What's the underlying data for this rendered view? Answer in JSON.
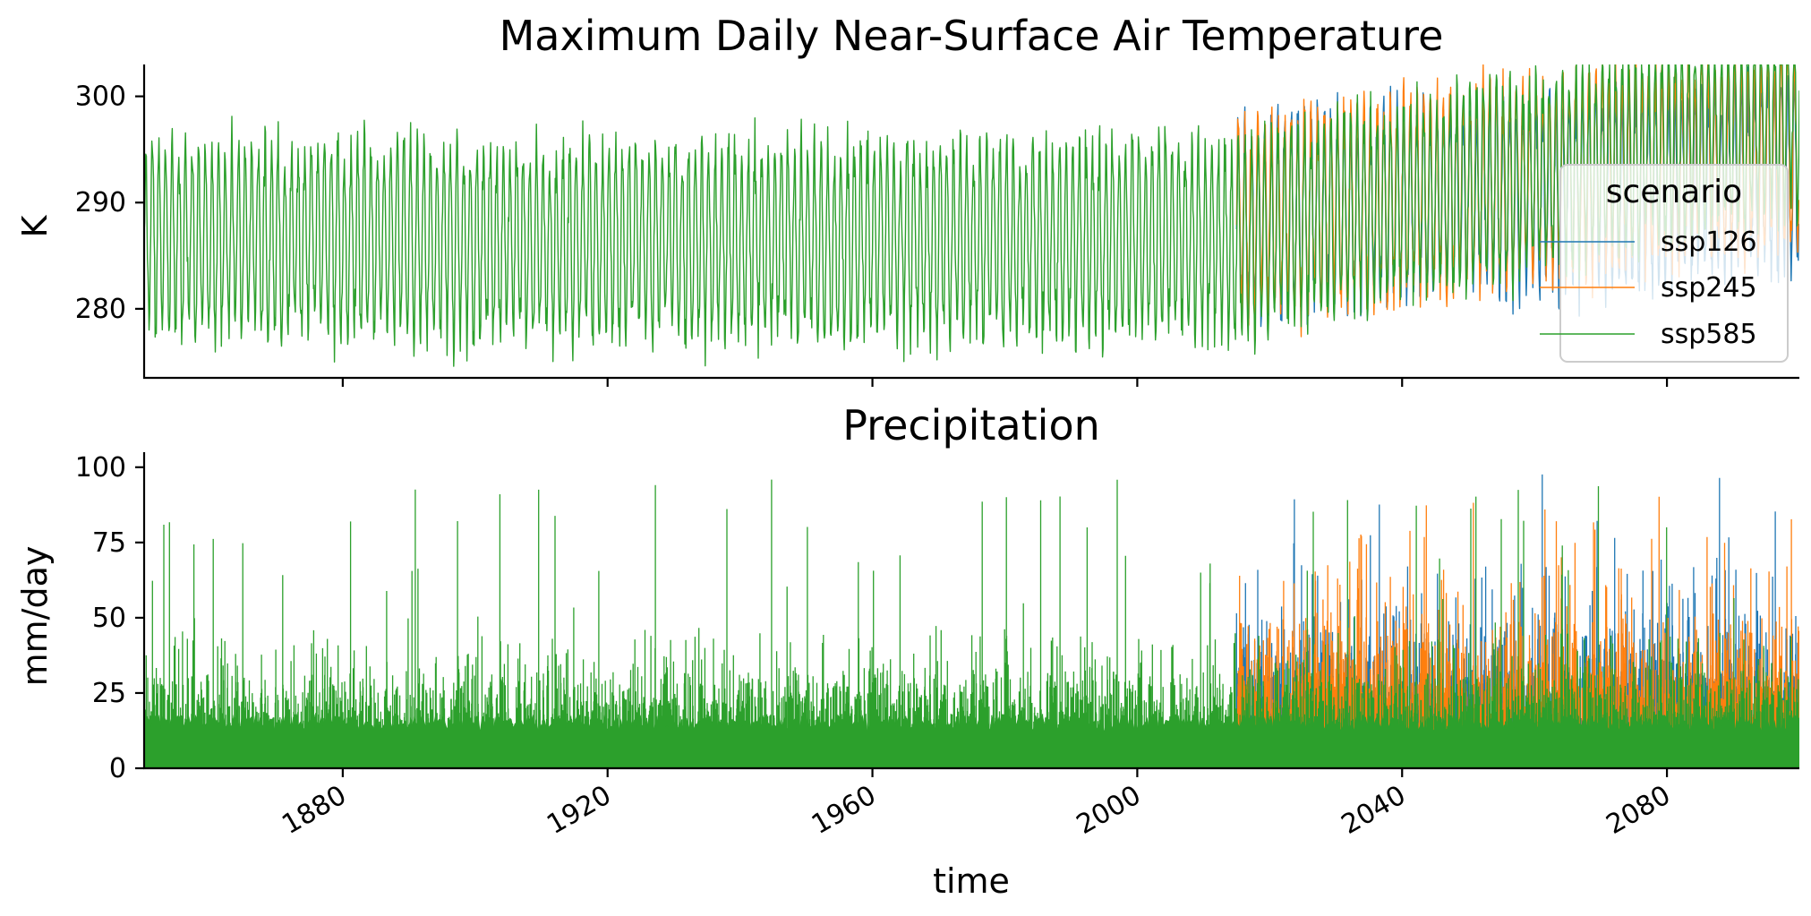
{
  "chart_data": [
    {
      "type": "line",
      "title": "Maximum Daily Near-Surface Air Temperature",
      "xlabel": "",
      "ylabel": "K",
      "xlim": [
        1850,
        2100
      ],
      "ylim": [
        273.5,
        303
      ],
      "yticks": [
        280,
        290,
        300
      ],
      "ytick_labels": [
        "280",
        "290",
        "300"
      ],
      "xticks": [
        1880,
        1920,
        1960,
        2000,
        2040,
        2080
      ],
      "historical_end": 2015,
      "legend": {
        "title": "scenario",
        "placement": "right",
        "entries": [
          "ssp126",
          "ssp245",
          "ssp585"
        ]
      },
      "series": [
        {
          "name": "ssp126",
          "color": "#1f77b4",
          "start": 2015,
          "mean": 288.5,
          "amplitude": 8.5,
          "trend_per_decade": 0.5
        },
        {
          "name": "ssp245",
          "color": "#ff7f0e",
          "start": 2015,
          "mean": 288.5,
          "amplitude": 8.5,
          "trend_per_decade": 0.8
        },
        {
          "name": "ssp585",
          "color": "#2ca02c",
          "start": 1850,
          "mean": 286.5,
          "amplitude": 8.5,
          "trend_per_decade": 1.4
        }
      ]
    },
    {
      "type": "line",
      "title": "Precipitation",
      "xlabel": "time",
      "ylabel": "mm/day",
      "xlim": [
        1850,
        2100
      ],
      "ylim": [
        0,
        105
      ],
      "yticks": [
        0,
        25,
        50,
        75,
        100
      ],
      "ytick_labels": [
        "0",
        "25",
        "50",
        "75",
        "100"
      ],
      "xticks": [
        1880,
        1920,
        1960,
        2000,
        2040,
        2080
      ],
      "xtick_labels": [
        "1880",
        "1920",
        "1960",
        "2000",
        "2040",
        "2080"
      ],
      "historical_end": 2015,
      "series": [
        {
          "name": "ssp126",
          "color": "#1f77b4",
          "start": 2015,
          "typical_peak": 45,
          "max": 101
        },
        {
          "name": "ssp245",
          "color": "#ff7f0e",
          "start": 2015,
          "typical_peak": 45,
          "max": 91
        },
        {
          "name": "ssp585",
          "color": "#2ca02c",
          "start": 1850,
          "typical_peak": 30,
          "max": 96
        }
      ]
    }
  ]
}
